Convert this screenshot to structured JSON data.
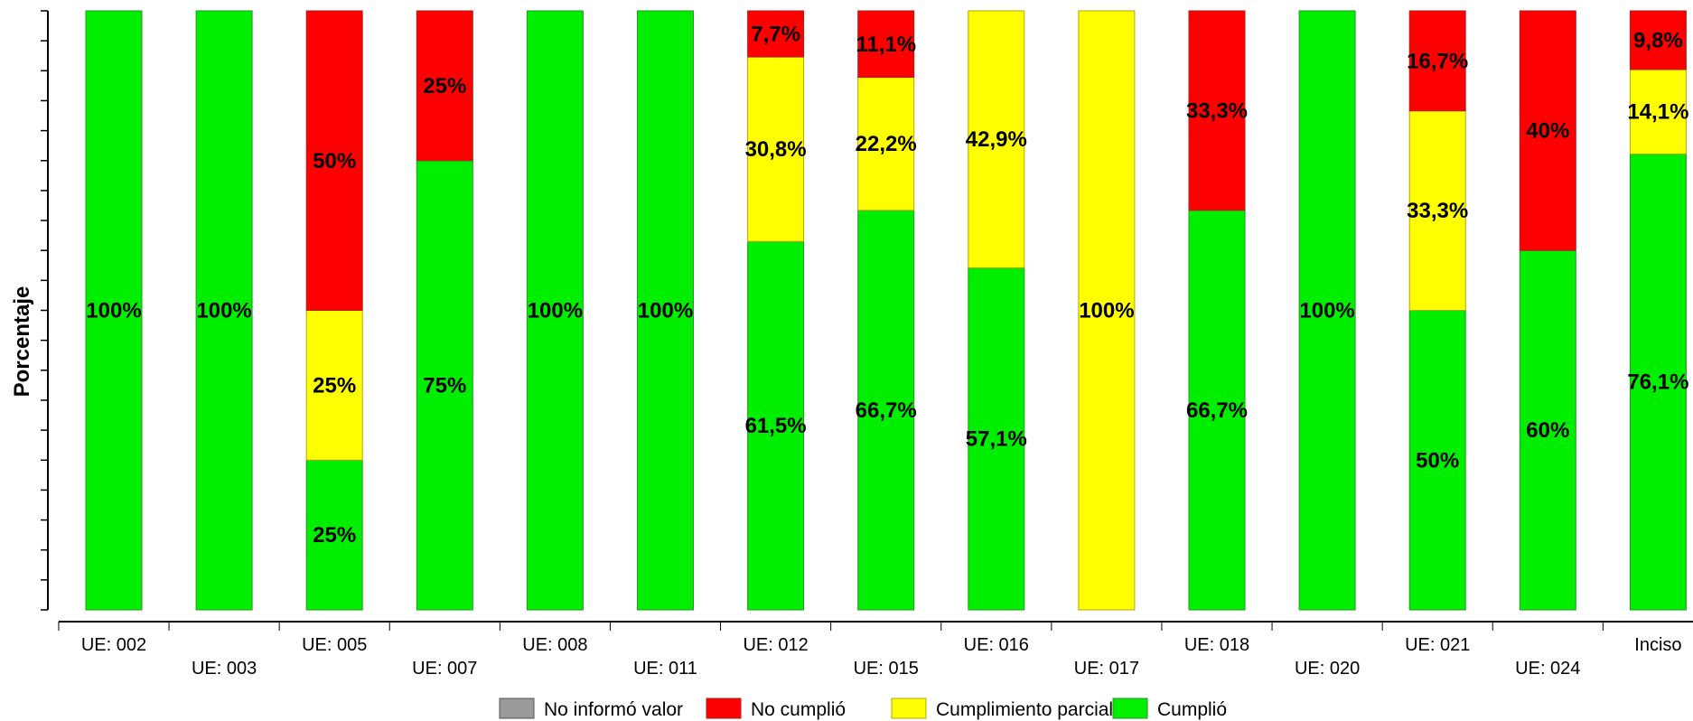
{
  "chart_data": {
    "type": "bar",
    "stacked": true,
    "normalized": true,
    "ylabel": "Porcentaje",
    "ylim": [
      0,
      100
    ],
    "categories": [
      "UE: 002",
      "UE: 003",
      "UE: 005",
      "UE: 007",
      "UE: 008",
      "UE: 011",
      "UE: 012",
      "UE: 015",
      "UE: 016",
      "UE: 017",
      "UE: 018",
      "UE: 020",
      "UE: 021",
      "UE: 024",
      "Inciso"
    ],
    "series": [
      {
        "name": "Cumplió",
        "color": "#00ee00",
        "stroke": "#229922",
        "values": [
          100,
          100,
          25,
          75,
          100,
          100,
          61.5,
          66.7,
          57.1,
          0,
          66.7,
          100,
          50,
          60,
          76.1
        ],
        "labels": [
          "100%",
          "100%",
          "25%",
          "75%",
          "100%",
          "100%",
          "61,5%",
          "66,7%",
          "57,1%",
          "",
          "66,7%",
          "100%",
          "50%",
          "60%",
          "76,1%"
        ]
      },
      {
        "name": "Cumplimiento parcial",
        "color": "#ffff00",
        "stroke": "#b8a400",
        "values": [
          0,
          0,
          25,
          0,
          0,
          0,
          30.8,
          22.2,
          42.9,
          100,
          0,
          0,
          33.3,
          0,
          14.1
        ],
        "labels": [
          "",
          "",
          "25%",
          "",
          "",
          "",
          "30,8%",
          "22,2%",
          "42,9%",
          "100%",
          "",
          "",
          "33,3%",
          "",
          "14,1%"
        ]
      },
      {
        "name": "No cumplió",
        "color": "#ff0000",
        "stroke": "#aa2222",
        "values": [
          0,
          0,
          50,
          25,
          0,
          0,
          7.7,
          11.1,
          0,
          0,
          33.3,
          0,
          16.7,
          40,
          9.8
        ],
        "labels": [
          "",
          "",
          "50%",
          "25%",
          "",
          "",
          "7,7%",
          "11,1%",
          "",
          "",
          "33,3%",
          "",
          "16,7%",
          "40%",
          "9,8%"
        ]
      },
      {
        "name": "No informó valor",
        "color": "#999999",
        "stroke": "#555555",
        "values": [
          0,
          0,
          0,
          0,
          0,
          0,
          0,
          0,
          0,
          0,
          0,
          0,
          0,
          0,
          0
        ],
        "labels": [
          "",
          "",
          "",
          "",
          "",
          "",
          "",
          "",
          "",
          "",
          "",
          "",
          "",
          "",
          ""
        ]
      }
    ],
    "legend": {
      "position": "bottom",
      "order": [
        "No informó valor",
        "No cumplió",
        "Cumplimiento parcial",
        "Cumplió"
      ]
    },
    "grid": false
  }
}
